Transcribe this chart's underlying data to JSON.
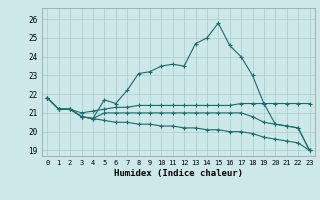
{
  "xlabel": "Humidex (Indice chaleur)",
  "background_color": "#cce8e8",
  "grid_color": "#aacccc",
  "line_color": "#1a6b6b",
  "xlim": [
    -0.5,
    23.5
  ],
  "ylim": [
    18.7,
    26.6
  ],
  "yticks": [
    19,
    20,
    21,
    22,
    23,
    24,
    25,
    26
  ],
  "xticks": [
    0,
    1,
    2,
    3,
    4,
    5,
    6,
    7,
    8,
    9,
    10,
    11,
    12,
    13,
    14,
    15,
    16,
    17,
    18,
    19,
    20,
    21,
    22,
    23
  ],
  "series": [
    [
      21.8,
      21.2,
      21.2,
      20.8,
      20.7,
      21.7,
      21.5,
      22.2,
      23.1,
      23.2,
      23.5,
      23.6,
      23.5,
      24.7,
      25.0,
      25.8,
      24.6,
      24.0,
      23.0,
      21.5,
      20.4,
      20.3,
      20.2,
      19.0
    ],
    [
      21.8,
      21.2,
      21.2,
      21.0,
      21.1,
      21.2,
      21.3,
      21.3,
      21.4,
      21.4,
      21.4,
      21.4,
      21.4,
      21.4,
      21.4,
      21.4,
      21.4,
      21.5,
      21.5,
      21.5,
      21.5,
      21.5,
      21.5,
      21.5
    ],
    [
      21.8,
      21.2,
      21.2,
      20.8,
      20.7,
      21.0,
      21.0,
      21.0,
      21.0,
      21.0,
      21.0,
      21.0,
      21.0,
      21.0,
      21.0,
      21.0,
      21.0,
      21.0,
      20.8,
      20.5,
      20.4,
      20.3,
      20.2,
      19.0
    ],
    [
      21.8,
      21.2,
      21.2,
      20.8,
      20.7,
      20.6,
      20.5,
      20.5,
      20.4,
      20.4,
      20.3,
      20.3,
      20.2,
      20.2,
      20.1,
      20.1,
      20.0,
      20.0,
      19.9,
      19.7,
      19.6,
      19.5,
      19.4,
      19.0
    ]
  ]
}
